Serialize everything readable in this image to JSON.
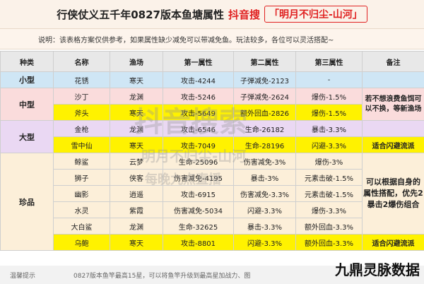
{
  "header": {
    "title": "行侠仗义五千年0827版本鱼塘属性",
    "brand": "抖音搜",
    "subtitle": "「明月不归尘-山河」"
  },
  "note": "说明：该表格方案仅供参考，如果属性缺少减免可以带减免鱼。玩法较多，各位可以灵活搭配~",
  "columns": [
    "种类",
    "名称",
    "渔场",
    "第一属性",
    "第二属性",
    "第三属性",
    "备注"
  ],
  "rows": [
    {
      "name": "花锈",
      "area": "寒天",
      "a1": "攻击-4244",
      "a2": "子弹减免-2123",
      "a3": "-"
    },
    {
      "name": "沙丁",
      "area": "龙渊",
      "a1": "攻击-5246",
      "a2": "子弹减免-2624",
      "a3": "爆伤-1.5%"
    },
    {
      "name": "斧头",
      "area": "寒天",
      "a1": "攻击-5649",
      "a2": "额外回血-2826",
      "a3": "爆伤-1.5%"
    },
    {
      "name": "金枪",
      "area": "龙渊",
      "a1": "攻击-6546",
      "a2": "生命-26182",
      "a3": "暴击-3.3%"
    },
    {
      "name": "雪中仙",
      "area": "寒天",
      "a1": "攻击-7049",
      "a2": "生命-28196",
      "a3": "闪避-3.3%"
    },
    {
      "name": "鲸鲨",
      "area": "云梦",
      "a1": "生命-25096",
      "a2": "伤害减免-3%",
      "a3": "爆伤-3%"
    },
    {
      "name": "狮子",
      "area": "侠客",
      "a1": "伤害减免-4195",
      "a2": "暴击-3%",
      "a3": "元素击破-1.5%"
    },
    {
      "name": "幽影",
      "area": "逍遥",
      "a1": "攻击-6915",
      "a2": "伤害减免-3.3%",
      "a3": "元素击破-1.5%"
    },
    {
      "name": "水灵",
      "area": "紫霞",
      "a1": "伤害减免-5034",
      "a2": "闪避-3.3%",
      "a3": "爆伤-3.3%"
    },
    {
      "name": "大白鲨",
      "area": "龙渊",
      "a1": "生命-32625",
      "a2": "暴击-3.3%",
      "a3": "额外回血-3.3%"
    },
    {
      "name": "乌鲍",
      "area": "寒天",
      "a1": "攻击-8801",
      "a2": "闪避-3.3%",
      "a3": "额外回血-3.3%"
    }
  ],
  "categories": {
    "small": "小型",
    "mid": "中型",
    "big": "大型",
    "rare": "珍品"
  },
  "remarks": {
    "mid": "若不想浪费鱼饵可以不换，等新渔场",
    "big": "适合闪避流派",
    "rare": "可以根据自身的属性搭配，优先2暴击2爆伤组合",
    "last": "适合闪避流派"
  },
  "footer": {
    "label": "温馨提示",
    "text": "0827版本鱼竿最高15星，可以将鱼竿升级到最高星加战力、图"
  },
  "watermark": {
    "line1": "抖音搜索",
    "line2": "明月不归尘-山河",
    "line3": "每晚九点直播"
  },
  "corner_logo": "九鼎灵脉数据"
}
